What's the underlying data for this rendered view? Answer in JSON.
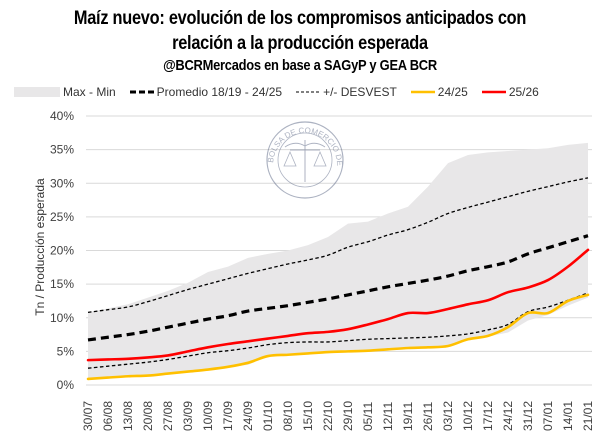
{
  "chart_data": {
    "type": "line",
    "title": "Maíz nuevo: evolución de los compromisos anticipados con relación a la producción esperada",
    "title_lines": [
      "Maíz nuevo: evolución de los compromisos anticipados con",
      "relación a la producción esperada"
    ],
    "subtitle": "@BCRMercados en base a SAGyP y GEA BCR",
    "xlabel": "",
    "ylabel": "Tn / Producción esperada",
    "ylim": [
      0,
      40
    ],
    "yticks": [
      0,
      5,
      10,
      15,
      20,
      25,
      30,
      35,
      40
    ],
    "ytick_labels": [
      "0%",
      "5%",
      "10%",
      "15%",
      "20%",
      "25%",
      "30%",
      "35%",
      "40%"
    ],
    "grid": "horizontal",
    "legend_position": "top",
    "watermark": "BOLSA DE COMERCIO DE ROSARIO",
    "categories": [
      "30/07",
      "06/08",
      "13/08",
      "20/08",
      "27/08",
      "03/09",
      "10/09",
      "17/09",
      "24/09",
      "01/10",
      "08/10",
      "15/10",
      "22/10",
      "29/10",
      "05/11",
      "12/11",
      "19/11",
      "26/11",
      "03/12",
      "10/12",
      "17/12",
      "24/12",
      "31/12",
      "07/01",
      "14/01",
      "21/01"
    ],
    "band": {
      "name": "Max - Min",
      "color": "#e8e7e8",
      "max": [
        10.8,
        11.4,
        12.0,
        13.0,
        14.0,
        15.2,
        16.8,
        17.6,
        18.9,
        19.5,
        20.0,
        20.8,
        22.0,
        24.0,
        24.3,
        25.5,
        26.5,
        29.5,
        33.0,
        34.2,
        34.6,
        34.8,
        35.0,
        35.2,
        35.7,
        36.0
      ],
      "min": [
        0.9,
        1.1,
        1.3,
        1.4,
        1.7,
        2.0,
        2.3,
        2.7,
        3.0,
        4.3,
        4.5,
        4.6,
        4.8,
        5.0,
        5.1,
        5.3,
        5.5,
        5.6,
        5.8,
        6.8,
        7.2,
        7.8,
        9.6,
        10.4,
        11.8,
        13.0
      ]
    },
    "series": [
      {
        "name": "Promedio 18/19 - 24/25",
        "color": "#000000",
        "style": "dash-thick",
        "values": [
          6.7,
          7.1,
          7.5,
          8.0,
          8.6,
          9.2,
          9.8,
          10.3,
          11.0,
          11.4,
          11.8,
          12.3,
          12.8,
          13.4,
          14.0,
          14.6,
          15.1,
          15.6,
          16.2,
          17.0,
          17.6,
          18.3,
          19.5,
          20.4,
          21.3,
          22.2
        ]
      },
      {
        "name": "+/- DESVEST (superior)",
        "color": "#000000",
        "style": "dash-thin",
        "values": [
          10.8,
          11.2,
          11.6,
          12.4,
          13.3,
          14.2,
          15.0,
          15.8,
          16.6,
          17.3,
          18.0,
          18.6,
          19.3,
          20.5,
          21.3,
          22.3,
          23.1,
          24.2,
          25.5,
          26.4,
          27.2,
          28.0,
          28.8,
          29.5,
          30.2,
          30.8
        ]
      },
      {
        "name": "+/- DESVEST (inferior)",
        "color": "#000000",
        "style": "dash-thin",
        "values": [
          2.5,
          2.8,
          3.1,
          3.4,
          3.8,
          4.3,
          4.8,
          5.1,
          5.5,
          6.0,
          6.3,
          6.4,
          6.4,
          6.6,
          6.8,
          6.9,
          7.0,
          7.1,
          7.3,
          7.6,
          8.2,
          9.0,
          10.9,
          11.6,
          12.6,
          13.7
        ]
      },
      {
        "name": "24/25",
        "color": "#ffc000",
        "style": "solid",
        "values": [
          0.9,
          1.1,
          1.3,
          1.4,
          1.7,
          2.0,
          2.3,
          2.7,
          3.3,
          4.3,
          4.5,
          4.7,
          4.9,
          5.0,
          5.1,
          5.3,
          5.5,
          5.6,
          5.8,
          6.8,
          7.3,
          8.6,
          10.7,
          10.7,
          12.5,
          13.4
        ]
      },
      {
        "name": "25/26",
        "color": "#ff0000",
        "style": "solid",
        "values": [
          3.7,
          3.8,
          3.9,
          4.1,
          4.4,
          5.0,
          5.6,
          6.1,
          6.5,
          6.9,
          7.3,
          7.7,
          7.9,
          8.3,
          9.0,
          9.8,
          10.7,
          10.7,
          11.3,
          12.0,
          12.6,
          13.8,
          14.5,
          15.6,
          17.6,
          20.1
        ]
      }
    ],
    "legend": [
      {
        "label": "Max - Min",
        "symbol": "band"
      },
      {
        "label": "Promedio 18/19 - 24/25",
        "symbol": "dash-thick"
      },
      {
        "label": "+/- DESVEST",
        "symbol": "dash-thin"
      },
      {
        "label": "24/25",
        "symbol": "line-yellow"
      },
      {
        "label": "25/26",
        "symbol": "line-red"
      }
    ]
  }
}
